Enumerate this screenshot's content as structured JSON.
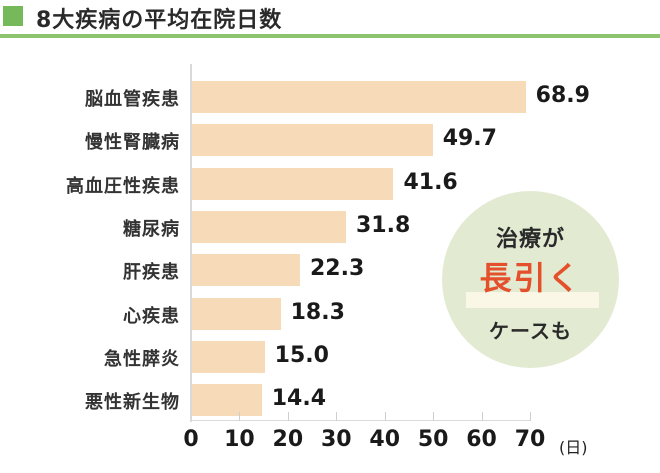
{
  "title": "8大疾病の平均在院日数",
  "colors": {
    "accent_green": "#76b95b",
    "rule_green": "#8cc56e",
    "bar_fill": "#f7dab8",
    "callout_bg": "#e2ebd2",
    "callout_highlight": "#e4502b"
  },
  "callout": {
    "line1": "治療が",
    "line2": "長引く",
    "line3": "ケースも"
  },
  "axis": {
    "ticks": [
      "0",
      "10",
      "20",
      "30",
      "40",
      "50",
      "60",
      "70"
    ],
    "unit": "(日)"
  },
  "chart_data": {
    "type": "bar",
    "orientation": "horizontal",
    "title": "8大疾病の平均在院日数",
    "categories": [
      "脳血管疾患",
      "慢性腎臓病",
      "高血圧性疾患",
      "糖尿病",
      "肝疾患",
      "心疾患",
      "急性膵炎",
      "悪性新生物"
    ],
    "values": [
      68.9,
      49.7,
      41.6,
      31.8,
      22.3,
      18.3,
      15.0,
      14.4
    ],
    "value_labels": [
      "68.9",
      "49.7",
      "41.6",
      "31.8",
      "22.3",
      "18.3",
      "15.0",
      "14.4"
    ],
    "xlabel": "(日)",
    "ylabel": "",
    "xlim": [
      0,
      70
    ],
    "xticks": [
      0,
      10,
      20,
      30,
      40,
      50,
      60,
      70
    ],
    "grid": false,
    "legend": null,
    "annotations": [
      "治療が 長引く ケースも"
    ]
  }
}
